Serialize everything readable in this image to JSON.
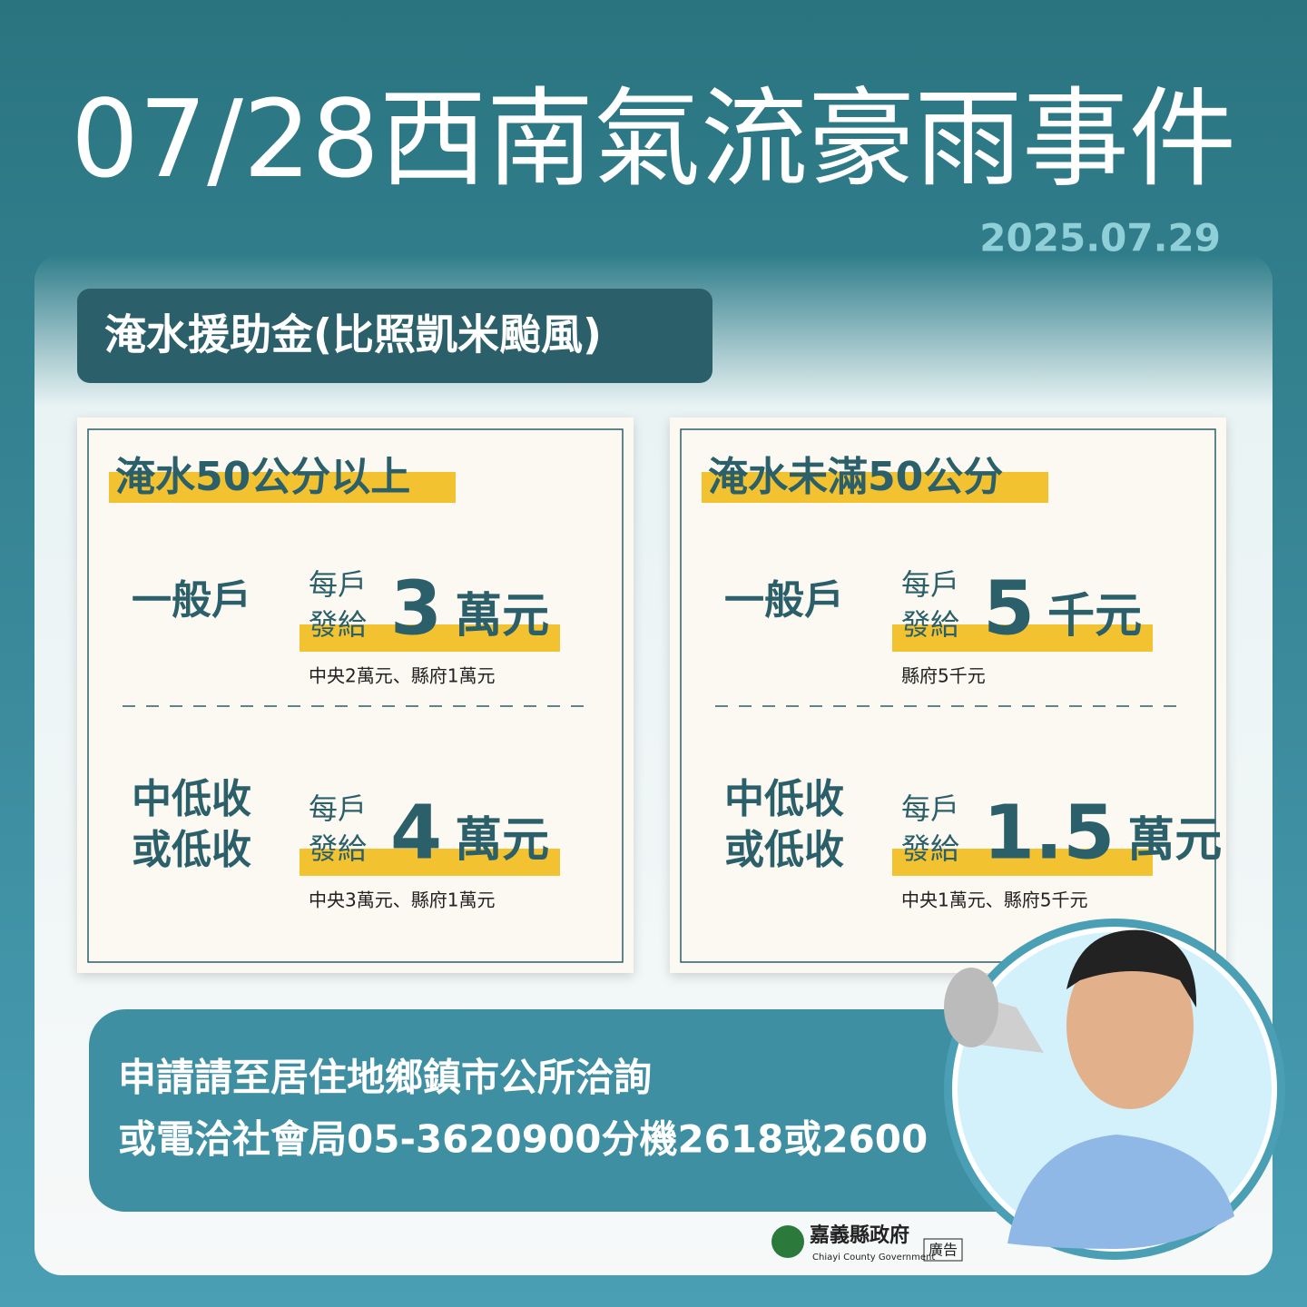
{
  "title": "07/28西南氣流豪雨事件",
  "date": "2025.07.29",
  "section_title": "淹水援助金(比照凱米颱風)",
  "cards": [
    {
      "heading": "淹水50公分以上",
      "rows": [
        {
          "label": [
            "一般戶"
          ],
          "prefix": [
            "每戶",
            "發給"
          ],
          "amount": 3,
          "unit": "萬元",
          "note": "中央2萬元、縣府1萬元"
        },
        {
          "label": [
            "中低收",
            "或低收"
          ],
          "prefix": [
            "每戶",
            "發給"
          ],
          "amount": 4,
          "unit": "萬元",
          "note": "中央3萬元、縣府1萬元"
        }
      ]
    },
    {
      "heading": "淹水未滿50公分",
      "rows": [
        {
          "label": [
            "一般戶"
          ],
          "prefix": [
            "每戶",
            "發給"
          ],
          "amount": 5,
          "unit": "千元",
          "note": "縣府5千元"
        },
        {
          "label": [
            "中低收",
            "或低收"
          ],
          "prefix": [
            "每戶",
            "發給"
          ],
          "amount": 1.5,
          "unit": "萬元",
          "note": "中央1萬元、縣府5千元"
        }
      ]
    }
  ],
  "contact": {
    "lines": [
      "申請請至居住地鄉鎮市公所洽詢",
      "或電洽社會局05-3620900分機2618或2600"
    ]
  },
  "footer": {
    "logo_name": "嘉義縣政府",
    "logo_english": "Chiayi County Government",
    "tag": "廣告"
  }
}
